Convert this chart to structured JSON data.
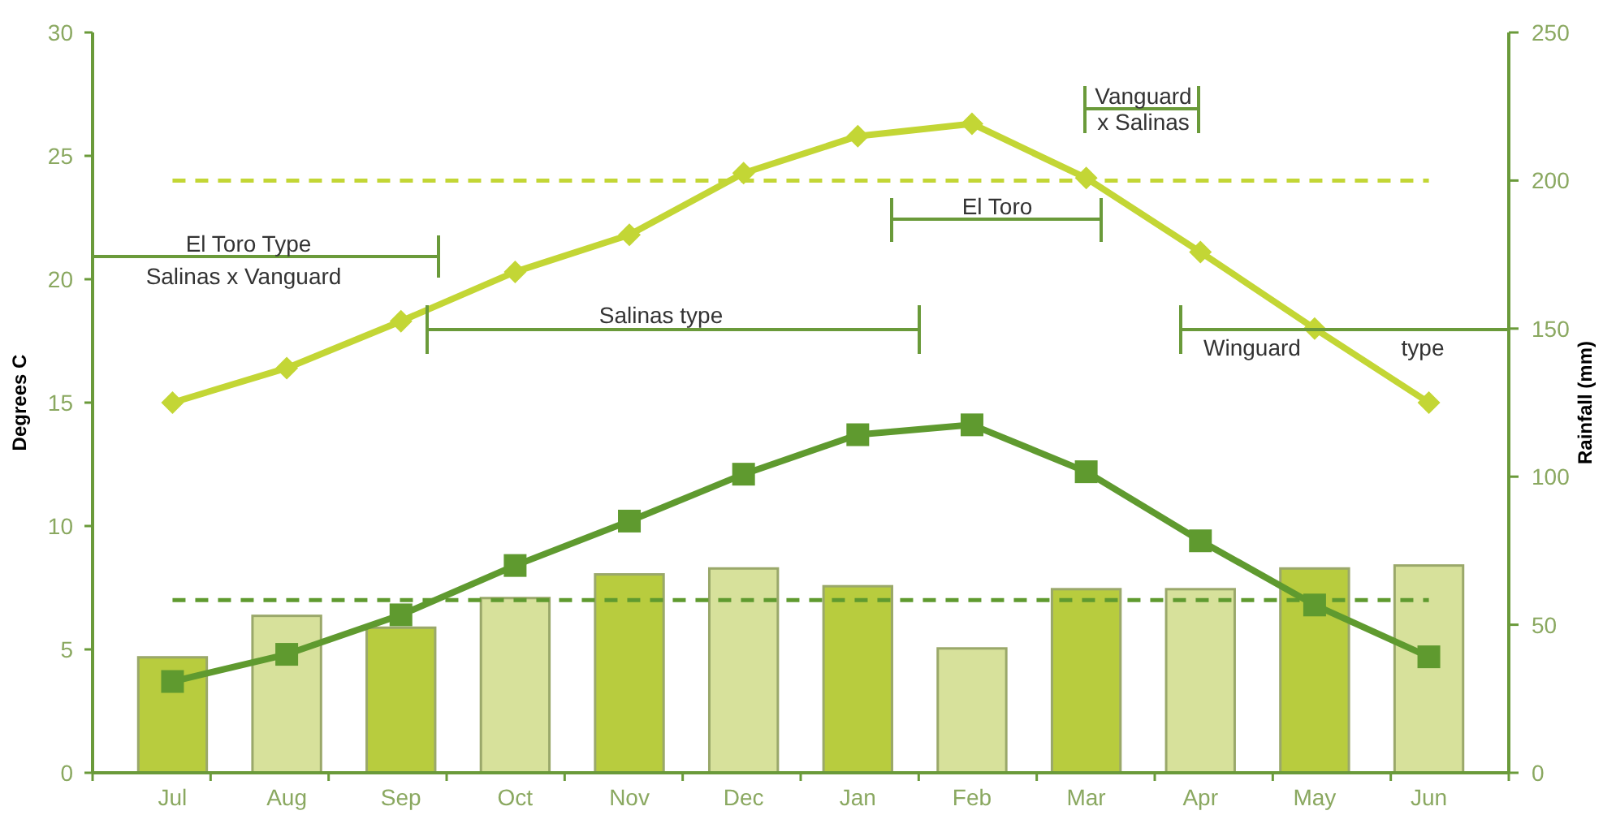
{
  "chart_data": {
    "type": "bar",
    "categories": [
      "Jul",
      "Aug",
      "Sep",
      "Oct",
      "Nov",
      "Dec",
      "Jan",
      "Feb",
      "Mar",
      "Apr",
      "May",
      "Jun"
    ],
    "ylabel": "Degrees C",
    "y2label": "Rainfall (mm)",
    "ylim": [
      0,
      30
    ],
    "yticks": [
      0,
      5,
      10,
      15,
      20,
      25,
      30
    ],
    "y2lim": [
      0,
      250
    ],
    "y2ticks": [
      0,
      50,
      100,
      150,
      200,
      250
    ],
    "series": [
      {
        "axis": "y2",
        "colors": [
          "#b8cc3e",
          "#d7e19b",
          "#b8cc3e",
          "#d7e19b",
          "#b8cc3e",
          "#d7e19b",
          "#b8cc3e",
          "#d7e19b",
          "#b8cc3e",
          "#d7e19b",
          "#b8cc3e",
          "#d7e19b"
        ],
        "values": [
          39,
          53,
          49,
          59,
          67,
          69,
          63,
          42,
          62,
          62,
          69,
          70
        ]
      },
      {
        "type": "line",
        "color": "#c3d635",
        "marker": "diamond",
        "values": [
          15,
          16.4,
          18.3,
          20.3,
          21.8,
          24.3,
          25.8,
          26.3,
          24.1,
          21.1,
          18,
          15
        ]
      },
      {
        "type": "line",
        "color": "#5f9a2f",
        "marker": "square",
        "values": [
          3.7,
          4.8,
          6.4,
          8.4,
          10.2,
          12.1,
          13.7,
          14.1,
          12.2,
          9.4,
          6.8,
          4.7
        ]
      }
    ],
    "ref_lines": [
      {
        "axis": "y",
        "value": 24,
        "color": "#c3d635",
        "line_style": "dashed"
      },
      {
        "axis": "y",
        "value": 7,
        "color": "#5f9a2f",
        "line_style": "dashed"
      }
    ],
    "annotations": [
      "El Toro Type\nSalinas x Vanguard",
      "Salinas type",
      "El Toro",
      "Vanguard\nx Salinas",
      "Winguard\ntype"
    ],
    "grid": false
  }
}
